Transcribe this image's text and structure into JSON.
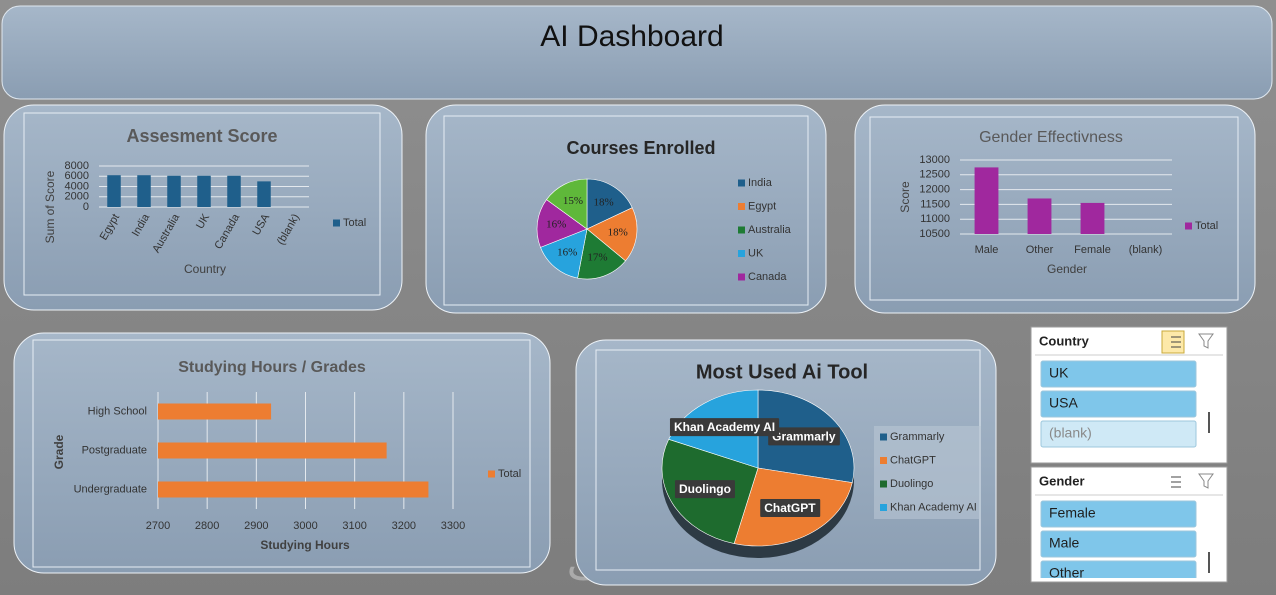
{
  "title": "AI Dashboard",
  "watermark": "خمسات",
  "chart_data": [
    {
      "type": "bar",
      "title": "Assesment Score",
      "y_label": "Sum of Score",
      "x_label": "Country",
      "categories": [
        "Egypt",
        "India",
        "Australia",
        "UK",
        "Canada",
        "USA",
        "(blank)"
      ],
      "series": [
        {
          "name": "Total",
          "color": "#1f5f8b",
          "values": [
            6200,
            6200,
            6100,
            6100,
            6100,
            5000,
            null
          ]
        }
      ],
      "ylim": [
        0,
        8000
      ],
      "yticks": [
        0,
        2000,
        4000,
        6000,
        8000
      ],
      "grid": true,
      "legend": "right"
    },
    {
      "type": "pie",
      "title": "Courses Enrolled",
      "categories": [
        "India",
        "Egypt",
        "Australia",
        "UK",
        "Canada",
        null
      ],
      "values": [
        18,
        18,
        17,
        16,
        16,
        15
      ],
      "value_labels": [
        "18%",
        "18%",
        "17%",
        "16%",
        "16%",
        "15%"
      ],
      "colors": [
        "#1f5f8b",
        "#ed7d31",
        "#1e7b34",
        "#27a3dd",
        "#a0289e",
        "#5fb83a"
      ],
      "legend": "right"
    },
    {
      "type": "bar",
      "title": "Gender Effectivness",
      "y_label": "Score",
      "x_label": "Gender",
      "categories": [
        "Male",
        "Other",
        "Female",
        "(blank)"
      ],
      "series": [
        {
          "name": "Total",
          "color": "#a0289e",
          "values": [
            12750,
            11700,
            11550,
            null
          ]
        }
      ],
      "ylim": [
        10500,
        13000
      ],
      "yticks": [
        10500,
        11000,
        11500,
        12000,
        12500,
        13000
      ],
      "grid": true,
      "legend": "right"
    },
    {
      "type": "barh",
      "title": "Studying Hours / Grades",
      "y_label": "Grade",
      "x_label": "Studying Hours",
      "categories": [
        "High School",
        "Postgraduate",
        "Undergraduate"
      ],
      "series": [
        {
          "name": "Total",
          "color": "#ed7d31",
          "values": [
            2930,
            3165,
            3250
          ]
        }
      ],
      "xlim": [
        2700,
        3300
      ],
      "xticks": [
        2700,
        2800,
        2900,
        3000,
        3100,
        3200,
        3300
      ],
      "grid": true,
      "legend": "right"
    },
    {
      "type": "pie",
      "title": "Most Used Ai Tool",
      "categories": [
        "Grammarly",
        "ChatGPT",
        "Duolingo",
        "Khan Academy AI"
      ],
      "values": [
        28,
        26,
        27,
        19
      ],
      "colors": [
        "#1f5f8b",
        "#ed7d31",
        "#1e6b2e",
        "#27a3dd"
      ],
      "legend": "right"
    }
  ],
  "slicers": [
    {
      "title": "Country",
      "items": [
        "UK",
        "USA",
        "(blank)"
      ]
    },
    {
      "title": "Gender",
      "items": [
        "Female",
        "Male",
        "Other"
      ]
    }
  ]
}
